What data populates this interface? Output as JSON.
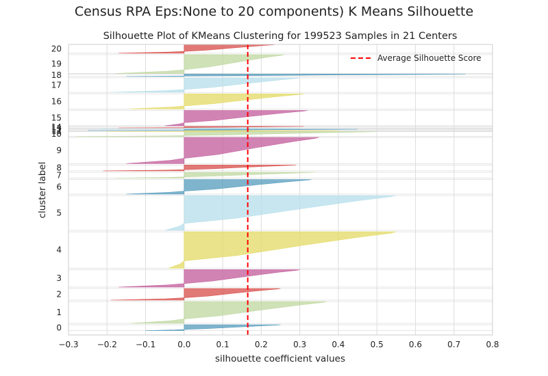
{
  "figure": {
    "title": "Census RPA Eps:None to 20 components) K Means Silhouette"
  },
  "chart_data": {
    "type": "area",
    "title": "Silhouette Plot of KMeans Clustering for 199523 Samples in 21 Centers",
    "xlabel": "silhouette coefficient values",
    "ylabel": "cluster label",
    "xlim": [
      -0.3,
      0.8
    ],
    "xticks": [
      "−0.3",
      "−0.2",
      "−0.1",
      "0.0",
      "0.1",
      "0.2",
      "0.3",
      "0.4",
      "0.5",
      "0.6",
      "0.7",
      "0.8"
    ],
    "grid": true,
    "legend": {
      "position": "top-right",
      "entries": [
        "Average Silhouette Score"
      ]
    },
    "average_silhouette_score": 0.165,
    "colors": {
      "red": "#d9534f",
      "green": "#c2d9a3",
      "blue": "#5b9fbf",
      "lightblue": "#b9dfea",
      "yellow": "#e4db6a",
      "pink": "#c4629e",
      "avg_line": "#ff0000"
    },
    "clusters": [
      {
        "label": "0",
        "y_range": [
          0.015,
          0.035
        ],
        "min": -0.1,
        "max": 0.25,
        "color": "blue"
      },
      {
        "label": "1",
        "y_range": [
          0.04,
          0.115
        ],
        "min": -0.14,
        "max": 0.37,
        "color": "green"
      },
      {
        "label": "2",
        "y_range": [
          0.12,
          0.16
        ],
        "min": -0.19,
        "max": 0.25,
        "color": "red"
      },
      {
        "label": "3",
        "y_range": [
          0.165,
          0.225
        ],
        "min": -0.17,
        "max": 0.3,
        "color": "pink"
      },
      {
        "label": "4",
        "y_range": [
          0.23,
          0.355
        ],
        "min": -0.04,
        "max": 0.55,
        "color": "yellow"
      },
      {
        "label": "5",
        "y_range": [
          0.36,
          0.48
        ],
        "min": -0.05,
        "max": 0.55,
        "color": "lightblue"
      },
      {
        "label": "6",
        "y_range": [
          0.485,
          0.535
        ],
        "min": -0.15,
        "max": 0.33,
        "color": "blue"
      },
      {
        "label": "7",
        "y_range": [
          0.54,
          0.56
        ],
        "min": -0.18,
        "max": 0.34,
        "color": "green"
      },
      {
        "label": "8",
        "y_range": [
          0.565,
          0.585
        ],
        "min": -0.21,
        "max": 0.29,
        "color": "red"
      },
      {
        "label": "9",
        "y_range": [
          0.59,
          0.68
        ],
        "min": -0.15,
        "max": 0.35,
        "color": "pink"
      },
      {
        "label": "10",
        "y_range": [
          0.683,
          0.7
        ],
        "min": -0.28,
        "max": 0.5,
        "color": "green"
      },
      {
        "label": "11",
        "y_range": [
          0.7,
          0.703
        ],
        "min": -0.2,
        "max": 0.4,
        "color": "yellow"
      },
      {
        "label": "12",
        "y_range": [
          0.704,
          0.708
        ],
        "min": -0.25,
        "max": 0.45,
        "color": "blue"
      },
      {
        "label": "13",
        "y_range": [
          0.709,
          0.712
        ],
        "min": -0.22,
        "max": 0.3,
        "color": "lightblue"
      },
      {
        "label": "14",
        "y_range": [
          0.713,
          0.718
        ],
        "min": -0.17,
        "max": 0.31,
        "color": "red"
      },
      {
        "label": "15",
        "y_range": [
          0.72,
          0.773
        ],
        "min": -0.05,
        "max": 0.32,
        "color": "pink"
      },
      {
        "label": "16",
        "y_range": [
          0.778,
          0.83
        ],
        "min": -0.14,
        "max": 0.31,
        "color": "yellow"
      },
      {
        "label": "17",
        "y_range": [
          0.835,
          0.885
        ],
        "min": -0.19,
        "max": 0.3,
        "color": "lightblue"
      },
      {
        "label": "18",
        "y_range": [
          0.89,
          0.898
        ],
        "min": -0.15,
        "max": 0.73,
        "color": "blue"
      },
      {
        "label": "19",
        "y_range": [
          0.9,
          0.965
        ],
        "min": -0.18,
        "max": 0.26,
        "color": "green"
      },
      {
        "label": "20",
        "y_range": [
          0.97,
          1.0
        ],
        "min": -0.17,
        "max": 0.24,
        "color": "red"
      }
    ]
  }
}
